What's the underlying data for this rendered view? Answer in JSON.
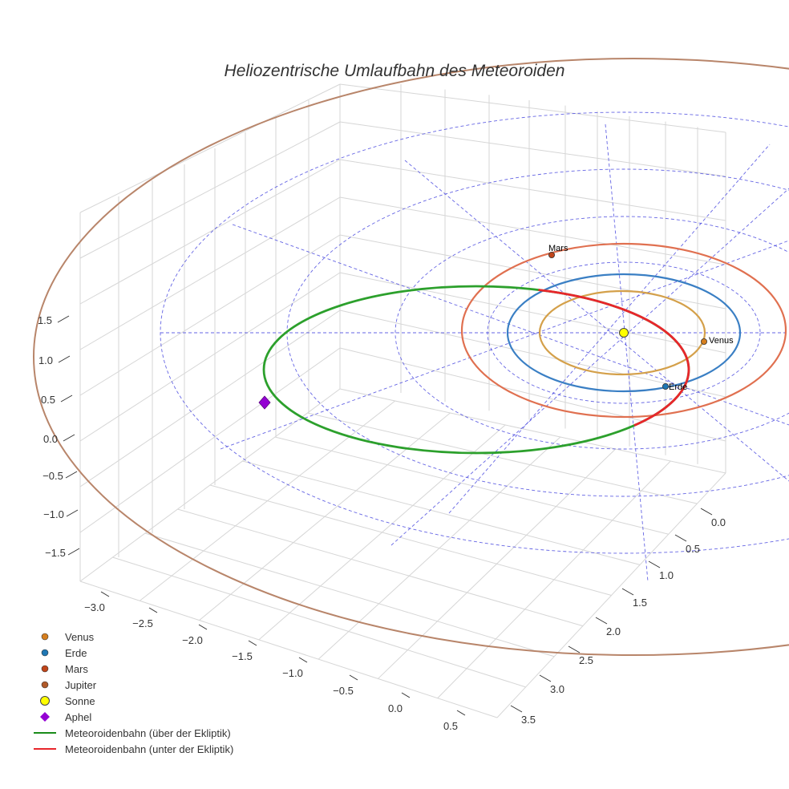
{
  "chart_data": {
    "type": "line",
    "title": "Heliozentrische Umlaufbahn des Meteoroiden",
    "axes": {
      "x": {
        "ticks": [
          "−3.0",
          "−2.5",
          "−2.0",
          "−1.5",
          "−1.0",
          "−0.5",
          "0.0",
          "0.5"
        ],
        "range": [
          -3.2,
          0.7
        ]
      },
      "y": {
        "ticks": [
          "0.0",
          "0.5",
          "1.0",
          "1.5",
          "2.0",
          "2.5",
          "3.0",
          "3.5"
        ],
        "range": [
          -0.2,
          3.7
        ]
      },
      "z": {
        "ticks": [
          "1.5",
          "1.0",
          "0.5",
          "0.0",
          "−0.5",
          "−1.0",
          "−1.5"
        ],
        "range": [
          -1.8,
          1.8
        ]
      }
    },
    "orbits": [
      {
        "name": "Venus",
        "a_au": 0.72,
        "color": "#d4a04a"
      },
      {
        "name": "Erde",
        "a_au": 1.0,
        "color": "#3a7fc4"
      },
      {
        "name": "Mars",
        "a_au": 1.52,
        "color": "#e07050"
      },
      {
        "name": "Jupiter",
        "a_au": 5.2,
        "color": "#b8856a"
      }
    ],
    "planet_labels": [
      {
        "name": "Venus",
        "color": "#d67f1e"
      },
      {
        "name": "Erde",
        "color": "#1f77b4"
      },
      {
        "name": "Mars",
        "color": "#c0451a"
      }
    ],
    "meteoroid": {
      "perihelion_au": 0.56,
      "aphelion_au": 3.2,
      "above_color": "#2ca02c",
      "below_color": "#e8262b"
    },
    "sun": {
      "name": "Sonne",
      "color": "#ffff00"
    },
    "aphel": {
      "name": "Aphel",
      "color": "#9400d3"
    },
    "legend": [
      {
        "label": "Venus",
        "kind": "dot",
        "color": "#d67f1e"
      },
      {
        "label": "Erde",
        "kind": "dot",
        "color": "#1f77b4"
      },
      {
        "label": "Mars",
        "kind": "dot",
        "color": "#c0451a"
      },
      {
        "label": "Jupiter",
        "kind": "dot",
        "color": "#b05a2a"
      },
      {
        "label": "Sonne",
        "kind": "sun",
        "color": "#ffff00"
      },
      {
        "label": "Aphel",
        "kind": "diamond",
        "color": "#9400d3"
      },
      {
        "label": "Meteoroidenbahn (über der Ekliptik)",
        "kind": "line",
        "color": "#1a8c1a"
      },
      {
        "label": "Meteoroidenbahn (unter der Ekliptik)",
        "kind": "line",
        "color": "#e8262b"
      }
    ]
  }
}
